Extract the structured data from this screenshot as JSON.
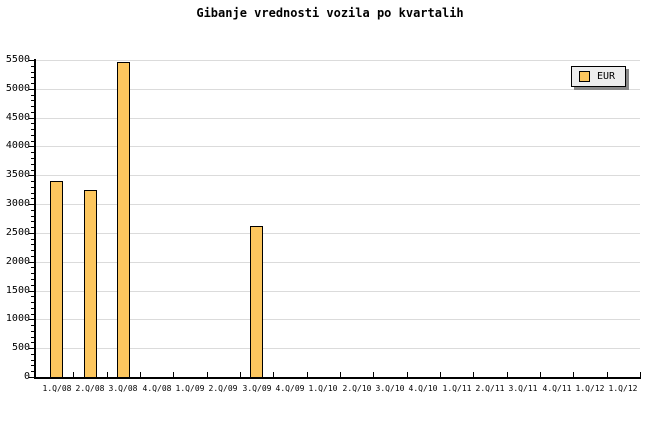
{
  "title": "Gibanje vrednosti vozila po kvartalih",
  "legend": {
    "label": "EUR"
  },
  "colors": {
    "bar_fill": "#fcc65e",
    "bar_border": "#000000",
    "gridline": "#dbdbdb",
    "axis": "#000000",
    "legend_fill": "#ededed",
    "legend_shadow": "#888888",
    "background": "#ffffff"
  },
  "chart_data": {
    "type": "bar",
    "title": "Gibanje vrednosti vozila po kvartalih",
    "categories": [
      "1.Q/08",
      "2.Q/08",
      "3.Q/08",
      "4.Q/08",
      "1.Q/09",
      "2.Q/09",
      "3.Q/09",
      "4.Q/09",
      "1.Q/10",
      "2.Q/10",
      "3.Q/10",
      "4.Q/10",
      "1.Q/11",
      "2.Q/11",
      "3.Q/11",
      "4.Q/11",
      "1.Q/12",
      "1.Q/12"
    ],
    "series": [
      {
        "name": "EUR",
        "values": [
          3400,
          3250,
          5470,
          null,
          null,
          null,
          2620,
          null,
          null,
          null,
          null,
          null,
          null,
          null,
          null,
          null,
          null,
          null
        ]
      }
    ],
    "xlabel": "",
    "ylabel": "",
    "ylim": [
      0,
      5500
    ],
    "ytick_step": 500,
    "yminor_step": 100,
    "grid": true,
    "legend_position": "top-right"
  }
}
